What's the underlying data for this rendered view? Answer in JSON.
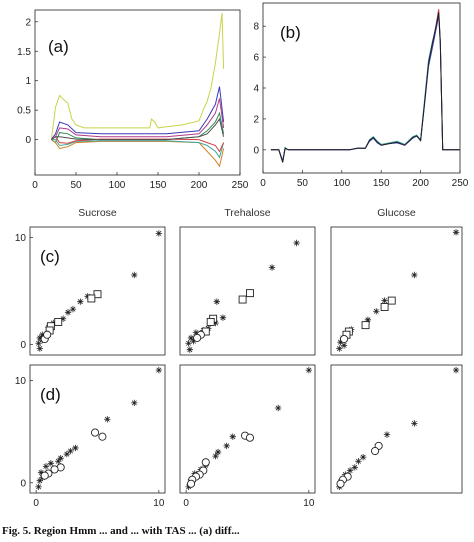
{
  "caption": "Fig. 5. Region Hmm ... and ... with TAS ... (a) diff...",
  "chart_data": [
    {
      "id": "a",
      "type": "line",
      "panel_label": "(a)",
      "xlim": [
        0,
        250
      ],
      "ylim": [
        -0.6,
        2.2
      ],
      "xticks": [
        0,
        50,
        100,
        150,
        200,
        250
      ],
      "yticks": [
        0,
        0.5,
        1,
        1.5,
        2
      ],
      "series": [
        {
          "color": "#c8d44a",
          "x": [
            20,
            25,
            30,
            35,
            40,
            45,
            50,
            60,
            80,
            100,
            120,
            140,
            142,
            146,
            150,
            160,
            180,
            200,
            205,
            210,
            215,
            220,
            225,
            228,
            230
          ],
          "y": [
            0,
            0.55,
            0.75,
            0.68,
            0.62,
            0.35,
            0.25,
            0.2,
            0.2,
            0.2,
            0.2,
            0.2,
            0.35,
            0.3,
            0.2,
            0.22,
            0.25,
            0.32,
            0.5,
            0.65,
            0.9,
            1.3,
            1.8,
            2.15,
            1.2
          ]
        },
        {
          "color": "#3a3ab8",
          "x": [
            20,
            25,
            30,
            40,
            50,
            80,
            120,
            160,
            200,
            210,
            220,
            225,
            230
          ],
          "y": [
            0,
            0.1,
            0.3,
            0.25,
            0.12,
            0.1,
            0.1,
            0.1,
            0.15,
            0.35,
            0.6,
            0.9,
            0.3
          ]
        },
        {
          "color": "#b23a8a",
          "x": [
            20,
            25,
            30,
            40,
            50,
            80,
            120,
            160,
            200,
            210,
            220,
            225,
            230
          ],
          "y": [
            0,
            0.05,
            0.2,
            0.18,
            0.08,
            0.05,
            0.05,
            0.05,
            0.1,
            0.25,
            0.45,
            0.7,
            0.2
          ]
        },
        {
          "color": "#2e8b57",
          "x": [
            20,
            25,
            30,
            40,
            50,
            80,
            120,
            160,
            200,
            210,
            220,
            225,
            230
          ],
          "y": [
            0,
            -0.05,
            0.12,
            0.1,
            0.03,
            0,
            0,
            0,
            0.05,
            0.15,
            0.3,
            0.45,
            0.1
          ]
        },
        {
          "color": "#d08020",
          "x": [
            20,
            25,
            30,
            40,
            50,
            80,
            120,
            160,
            200,
            210,
            220,
            225,
            230
          ],
          "y": [
            0,
            -0.05,
            -0.15,
            -0.12,
            -0.05,
            -0.03,
            -0.03,
            -0.03,
            -0.05,
            -0.2,
            -0.35,
            -0.45,
            -0.15
          ]
        },
        {
          "color": "#3fa8a0",
          "x": [
            20,
            25,
            30,
            40,
            50,
            80,
            120,
            160,
            200,
            210,
            220,
            225,
            230
          ],
          "y": [
            0,
            0,
            -0.1,
            -0.08,
            -0.03,
            -0.02,
            -0.02,
            -0.02,
            -0.05,
            -0.1,
            -0.2,
            -0.3,
            -0.05
          ]
        },
        {
          "color": "#d04040",
          "x": [
            20,
            25,
            30,
            40,
            50,
            80,
            120,
            160,
            200,
            210,
            220,
            225,
            230
          ],
          "y": [
            0,
            0.05,
            -0.05,
            -0.06,
            -0.02,
            0.01,
            0.01,
            0.01,
            0,
            -0.05,
            -0.1,
            -0.2,
            -0.05
          ]
        },
        {
          "color": "#505050",
          "x": [
            20,
            25,
            30,
            40,
            50,
            80,
            120,
            160,
            200,
            210,
            220,
            225,
            230
          ],
          "y": [
            0,
            0.05,
            0.05,
            0.03,
            0.01,
            0,
            0,
            0,
            0.05,
            0.1,
            0.25,
            0.35,
            0.05
          ]
        }
      ]
    },
    {
      "id": "b",
      "type": "line",
      "panel_label": "(b)",
      "xlim": [
        0,
        250
      ],
      "ylim": [
        -1.5,
        9.5
      ],
      "xticks": [
        0,
        50,
        100,
        150,
        200,
        250
      ],
      "yticks": [
        0,
        2,
        4,
        6,
        8
      ],
      "series": [
        {
          "color": "#d04040",
          "x": [
            10,
            20,
            25,
            28,
            32,
            40,
            50,
            70,
            90,
            110,
            120,
            130,
            135,
            140,
            145,
            150,
            160,
            170,
            180,
            190,
            195,
            200,
            205,
            210,
            215,
            220,
            223,
            225,
            228,
            230,
            240,
            250
          ],
          "y": [
            0,
            0,
            -0.8,
            0.1,
            0,
            0,
            0,
            0,
            0,
            0,
            0.1,
            0.1,
            0.6,
            0.8,
            0.5,
            0.3,
            0.4,
            0.5,
            0.3,
            0.8,
            0.9,
            0.6,
            3,
            5.5,
            6.8,
            8.2,
            9.1,
            7,
            0,
            0,
            0,
            0
          ]
        },
        {
          "color": "#3fa8a0",
          "x": [
            10,
            20,
            25,
            28,
            32,
            40,
            50,
            70,
            90,
            110,
            120,
            130,
            135,
            140,
            145,
            150,
            160,
            170,
            180,
            190,
            195,
            200,
            205,
            210,
            215,
            220,
            223,
            225,
            228,
            230,
            240,
            250
          ],
          "y": [
            0,
            0,
            -0.7,
            0.15,
            0,
            0,
            0,
            0,
            0,
            0,
            0.12,
            0.12,
            0.65,
            0.85,
            0.55,
            0.35,
            0.45,
            0.55,
            0.35,
            0.85,
            0.95,
            0.65,
            3.2,
            5.8,
            7,
            8,
            8.8,
            6.8,
            0,
            0,
            0,
            0
          ]
        },
        {
          "color": "#3a3ab8",
          "x": [
            10,
            20,
            25,
            28,
            32,
            40,
            50,
            70,
            90,
            110,
            120,
            130,
            135,
            140,
            145,
            150,
            160,
            170,
            180,
            190,
            195,
            200,
            205,
            210,
            215,
            220,
            223,
            225,
            228,
            230,
            240,
            250
          ],
          "y": [
            0,
            0,
            -0.75,
            0.1,
            0,
            0,
            0,
            0,
            0,
            0,
            0.1,
            0.1,
            0.55,
            0.75,
            0.45,
            0.3,
            0.4,
            0.45,
            0.3,
            0.75,
            0.9,
            0.6,
            2.9,
            5.4,
            6.6,
            7.9,
            8.7,
            6.9,
            0,
            0,
            0,
            0
          ]
        },
        {
          "color": "#222222",
          "x": [
            10,
            20,
            25,
            28,
            32,
            40,
            50,
            70,
            90,
            110,
            120,
            130,
            135,
            140,
            145,
            150,
            160,
            170,
            180,
            190,
            195,
            200,
            205,
            210,
            215,
            220,
            223,
            225,
            228,
            230,
            240,
            250
          ],
          "y": [
            0,
            0,
            -0.8,
            0.1,
            0,
            0,
            0,
            0,
            0,
            0,
            0.1,
            0.1,
            0.6,
            0.8,
            0.5,
            0.3,
            0.4,
            0.5,
            0.3,
            0.8,
            0.9,
            0.6,
            3,
            5.6,
            6.9,
            8.1,
            8.9,
            7,
            0,
            0,
            0,
            0
          ]
        }
      ]
    },
    {
      "id": "c1",
      "type": "scatter",
      "panel_label": "(c)",
      "col_title": "Sucrose",
      "xlim": [
        -0.5,
        10.5
      ],
      "ylim": [
        -1,
        11
      ],
      "yticks": [
        0,
        10
      ],
      "xticks": [],
      "stars": [
        [
          10,
          10.4
        ],
        [
          8,
          6.5
        ],
        [
          4.2,
          4.5
        ],
        [
          3.6,
          4
        ],
        [
          3,
          3.3
        ],
        [
          2.6,
          3
        ],
        [
          2.2,
          2.4
        ],
        [
          1.4,
          2
        ],
        [
          1,
          1.6
        ],
        [
          0.5,
          0.9
        ],
        [
          0.3,
          0.6
        ],
        [
          0.2,
          0.1
        ],
        [
          0.3,
          -0.4
        ],
        [
          0.5,
          0.4
        ]
      ],
      "squares": [
        [
          5,
          4.7
        ],
        [
          4.5,
          4.3
        ],
        [
          1.8,
          2.1
        ],
        [
          1.2,
          1.7
        ],
        [
          1.1,
          1.3
        ]
      ],
      "circles": [
        [
          0.7,
          0.5
        ],
        [
          0.9,
          0.9
        ]
      ]
    },
    {
      "id": "c2",
      "type": "scatter",
      "col_title": "Trehalose",
      "xlim": [
        -0.5,
        10.5
      ],
      "ylim": [
        -1,
        11
      ],
      "yticks": [],
      "xticks": [],
      "stars": [
        [
          9,
          9.5
        ],
        [
          7,
          7.2
        ],
        [
          2.5,
          4
        ],
        [
          3,
          2.5
        ],
        [
          2.4,
          2
        ],
        [
          1.8,
          1.5
        ],
        [
          1.4,
          1.3
        ],
        [
          0.8,
          1.1
        ],
        [
          0.4,
          0.6
        ],
        [
          0.2,
          0.1
        ],
        [
          0.3,
          -0.5
        ],
        [
          0.6,
          0.3
        ]
      ],
      "squares": [
        [
          5.2,
          4.8
        ],
        [
          4.6,
          4.2
        ],
        [
          2.2,
          2.4
        ],
        [
          2,
          2.1
        ],
        [
          1.6,
          1.2
        ]
      ],
      "circles": [
        [
          1.2,
          0.9
        ],
        [
          0.9,
          0.6
        ]
      ]
    },
    {
      "id": "c3",
      "type": "scatter",
      "col_title": "Glucose",
      "xlim": [
        -0.5,
        10.5
      ],
      "ylim": [
        -1,
        11
      ],
      "yticks": [],
      "xticks": [],
      "stars": [
        [
          10,
          10.5
        ],
        [
          6.5,
          6.5
        ],
        [
          4,
          4.1
        ],
        [
          3.3,
          3.1
        ],
        [
          2.6,
          2.3
        ],
        [
          1.2,
          1.4
        ],
        [
          0.8,
          1
        ],
        [
          0.5,
          0.6
        ],
        [
          0.3,
          0.2
        ],
        [
          0.2,
          -0.4
        ],
        [
          0.6,
          -0.1
        ]
      ],
      "squares": [
        [
          4.6,
          4.1
        ],
        [
          4,
          3.5
        ],
        [
          2.4,
          1.8
        ],
        [
          1,
          1.2
        ],
        [
          0.8,
          0.9
        ]
      ],
      "circles": [
        [
          0.6,
          0.5
        ]
      ]
    },
    {
      "id": "d1",
      "type": "scatter",
      "panel_label": "(d)",
      "xlim": [
        -0.5,
        10.5
      ],
      "ylim": [
        -1,
        11.5
      ],
      "yticks": [
        0,
        10
      ],
      "xticks": [
        0,
        10
      ],
      "stars": [
        [
          10,
          11
        ],
        [
          8,
          7.8
        ],
        [
          5.8,
          6.2
        ],
        [
          3.2,
          3.4
        ],
        [
          2.8,
          3.1
        ],
        [
          2.5,
          2.8
        ],
        [
          2,
          2.4
        ],
        [
          1.8,
          2.1
        ],
        [
          1.2,
          1.9
        ],
        [
          0.8,
          1.6
        ],
        [
          0.4,
          1
        ],
        [
          0.3,
          0.2
        ],
        [
          0.2,
          -0.4
        ],
        [
          0.5,
          0.5
        ]
      ],
      "squares": [],
      "circles": [
        [
          4.8,
          4.9
        ],
        [
          5.4,
          4.5
        ],
        [
          2,
          1.5
        ],
        [
          1.5,
          1.3
        ],
        [
          1,
          0.9
        ],
        [
          0.7,
          0.7
        ]
      ]
    },
    {
      "id": "d2",
      "type": "scatter",
      "xlim": [
        -0.5,
        10.5
      ],
      "ylim": [
        -1,
        11.5
      ],
      "yticks": [],
      "xticks": [
        0,
        10
      ],
      "stars": [
        [
          10,
          11
        ],
        [
          7.5,
          7.3
        ],
        [
          3.8,
          4.5
        ],
        [
          3.3,
          3.6
        ],
        [
          2.6,
          3
        ],
        [
          2.4,
          2.6
        ],
        [
          1.6,
          1.7
        ],
        [
          1.2,
          1.3
        ],
        [
          0.7,
          0.9
        ],
        [
          0.4,
          0.3
        ],
        [
          0.2,
          -0.4
        ]
      ],
      "squares": [],
      "circles": [
        [
          4.8,
          4.6
        ],
        [
          5.2,
          4.4
        ],
        [
          1.6,
          2
        ],
        [
          1.4,
          1.2
        ],
        [
          1.1,
          0.8
        ],
        [
          0.8,
          0.6
        ],
        [
          0.5,
          0.3
        ],
        [
          0.4,
          -0.1
        ]
      ]
    },
    {
      "id": "d3",
      "type": "scatter",
      "xlim": [
        -0.5,
        10.5
      ],
      "ylim": [
        -1,
        11.5
      ],
      "yticks": [],
      "xticks": [],
      "stars": [
        [
          10,
          11
        ],
        [
          6.5,
          5.8
        ],
        [
          4.2,
          4.7
        ],
        [
          3.5,
          3.5
        ],
        [
          2.2,
          2.5
        ],
        [
          1.8,
          2.1
        ],
        [
          1.5,
          1.5
        ],
        [
          1.1,
          1.2
        ],
        [
          0.7,
          0.8
        ],
        [
          0.3,
          0.1
        ],
        [
          0.2,
          -0.4
        ]
      ],
      "squares": [],
      "circles": [
        [
          3.5,
          3.6
        ],
        [
          3.2,
          3.1
        ],
        [
          0.9,
          0.6
        ],
        [
          0.5,
          0.3
        ],
        [
          0.3,
          -0.1
        ]
      ]
    }
  ]
}
